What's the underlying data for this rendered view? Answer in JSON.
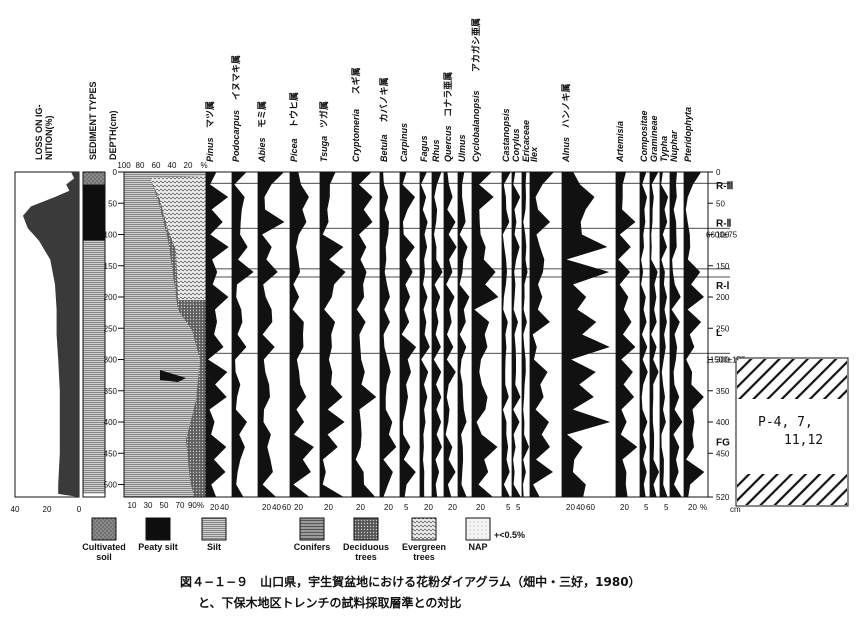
{
  "chart_data": {
    "type": "area",
    "depth_label": "DEPTH(cm)",
    "depth_ticks": [
      0,
      50,
      100,
      150,
      200,
      250,
      300,
      350,
      400,
      450,
      500
    ],
    "depth_range": [
      0,
      520
    ],
    "depth_unit": "cm",
    "loss_on_ignition": {
      "label": "LOSS ON IG-\nNITION(%)",
      "ticks": [
        "40",
        "20",
        "0"
      ],
      "values": [
        [
          0,
          5
        ],
        [
          10,
          3
        ],
        [
          20,
          8
        ],
        [
          30,
          6
        ],
        [
          40,
          15
        ],
        [
          55,
          30
        ],
        [
          70,
          35
        ],
        [
          90,
          32
        ],
        [
          110,
          25
        ],
        [
          140,
          18
        ],
        [
          180,
          15
        ],
        [
          220,
          14
        ],
        [
          260,
          14
        ],
        [
          300,
          13
        ],
        [
          350,
          12
        ],
        [
          400,
          12
        ],
        [
          450,
          12
        ],
        [
          500,
          13
        ],
        [
          515,
          13
        ]
      ]
    },
    "sediment_types": {
      "label": "SEDIMENT TYPES",
      "layers": [
        {
          "type": "cultivated",
          "from": 0,
          "to": 20
        },
        {
          "type": "peaty",
          "from": 20,
          "to": 110
        },
        {
          "type": "silt",
          "from": 110,
          "to": 515
        }
      ]
    },
    "summary": {
      "top_ticks": [
        "100",
        "80",
        "60",
        "40",
        "20",
        "%"
      ],
      "bottom_ticks": [
        "10",
        "30",
        "50",
        "70",
        "90%"
      ]
    },
    "taxa": [
      {
        "latin": "Pinus",
        "jp": "マツ属",
        "scale": [
          "20",
          "40"
        ],
        "group": "conifer"
      },
      {
        "latin": "Podocarpus",
        "jp": "イヌマキ属",
        "scale": [],
        "group": "conifer"
      },
      {
        "latin": "Abies",
        "jp": "モミ属",
        "scale": [
          "20",
          "40",
          "60"
        ],
        "group": "conifer"
      },
      {
        "latin": "Picea",
        "jp": "トウヒ属",
        "scale": [
          "20"
        ],
        "group": "conifer"
      },
      {
        "latin": "Tsuga",
        "jp": "ツガ属",
        "scale": [
          "20"
        ],
        "group": "conifer"
      },
      {
        "latin": "Cryptomeria",
        "jp": "スギ属",
        "scale": [
          "20"
        ],
        "group": "conifer"
      },
      {
        "latin": "Betula",
        "jp": "カバノキ属",
        "scale": [
          "20"
        ],
        "group": "deciduous"
      },
      {
        "latin": "Carpinus",
        "jp": "",
        "scale": [
          "5"
        ],
        "group": "deciduous"
      },
      {
        "latin": "Fagus",
        "jp": "",
        "scale": [
          "20"
        ],
        "group": "deciduous"
      },
      {
        "latin": "Rhus",
        "jp": "",
        "scale": [],
        "group": "deciduous"
      },
      {
        "latin": "Quercus",
        "jp": "コナラ亜属",
        "scale": [
          "20"
        ],
        "group": "deciduous"
      },
      {
        "latin": "Ulmus",
        "jp": "",
        "scale": [],
        "group": "deciduous"
      },
      {
        "latin": "Cyclobalanopsis",
        "jp": "アカガシ亜属",
        "scale": [
          "20"
        ],
        "group": "evergreen"
      },
      {
        "latin": "Castanopsis",
        "jp": "",
        "scale": [
          "5"
        ],
        "group": "evergreen"
      },
      {
        "latin": "Corylus",
        "jp": "",
        "scale": [
          "5"
        ],
        "group": "deciduous"
      },
      {
        "latin": "Ericaceae",
        "jp": "",
        "scale": [],
        "group": "deciduous"
      },
      {
        "latin": "Ilex",
        "jp": "",
        "scale": [],
        "group": "evergreen"
      },
      {
        "latin": "Alnus",
        "jp": "ハンノキ属",
        "scale": [
          "20",
          "40",
          "60"
        ],
        "group": "deciduous"
      },
      {
        "latin": "Artemisia",
        "jp": "",
        "scale": [
          "20"
        ],
        "group": "nap"
      },
      {
        "latin": "Compositae",
        "jp": "",
        "scale": [
          "5"
        ],
        "group": "nap"
      },
      {
        "latin": "Gramineae",
        "jp": "",
        "scale": [],
        "group": "nap"
      },
      {
        "latin": "Typha",
        "jp": "",
        "scale": [
          "5"
        ],
        "group": "nap"
      },
      {
        "latin": "Nuphar",
        "jp": "",
        "scale": [],
        "group": "nap"
      },
      {
        "latin": "Pteridophyta",
        "jp": "",
        "scale": [
          "20"
        ],
        "group": "nap"
      }
    ],
    "right_scale_ticks": [
      "0",
      "50",
      "100",
      "150",
      "200",
      "250",
      "300",
      "350",
      "400",
      "450",
      "520"
    ],
    "zones": [
      {
        "label": "R-Ⅲ",
        "depth": 5
      },
      {
        "label": "R-Ⅱ",
        "depth": 65
      },
      {
        "label": "R-Ⅰ",
        "depth": 165
      },
      {
        "label": "L",
        "depth": 240
      },
      {
        "label": "FG",
        "depth": 415
      }
    ],
    "dates": [
      {
        "label": "6600±75",
        "depth": 100
      },
      {
        "label": "11500±175",
        "depth": 300
      }
    ],
    "zone_boundaries_depth": [
      18,
      90,
      155,
      168,
      290
    ],
    "right_bottom_unit": "cm",
    "right_scale_percent": "%",
    "trench_box": {
      "text_line1": "P-4, 7,",
      "text_line2": "11,12"
    }
  },
  "legend": {
    "items": [
      {
        "key": "cultivated",
        "label": "Cultivated\nsoil"
      },
      {
        "key": "peaty",
        "label": "Peaty silt"
      },
      {
        "key": "silt",
        "label": "Silt"
      },
      {
        "key": "conifers",
        "label": "Conifers"
      },
      {
        "key": "deciduous",
        "label": "Deciduous\ntrees"
      },
      {
        "key": "evergreen",
        "label": "Evergreen\ntrees"
      },
      {
        "key": "nap",
        "label": "NAP"
      }
    ],
    "rare_note": "+<0.5%"
  },
  "caption": {
    "line1": "図４−１−９　山口県，宇生賀盆地における花粉ダイアグラム（畑中・三好，1980）",
    "line2": "と、下保木地区トレンチの試料採取層準との対比"
  }
}
